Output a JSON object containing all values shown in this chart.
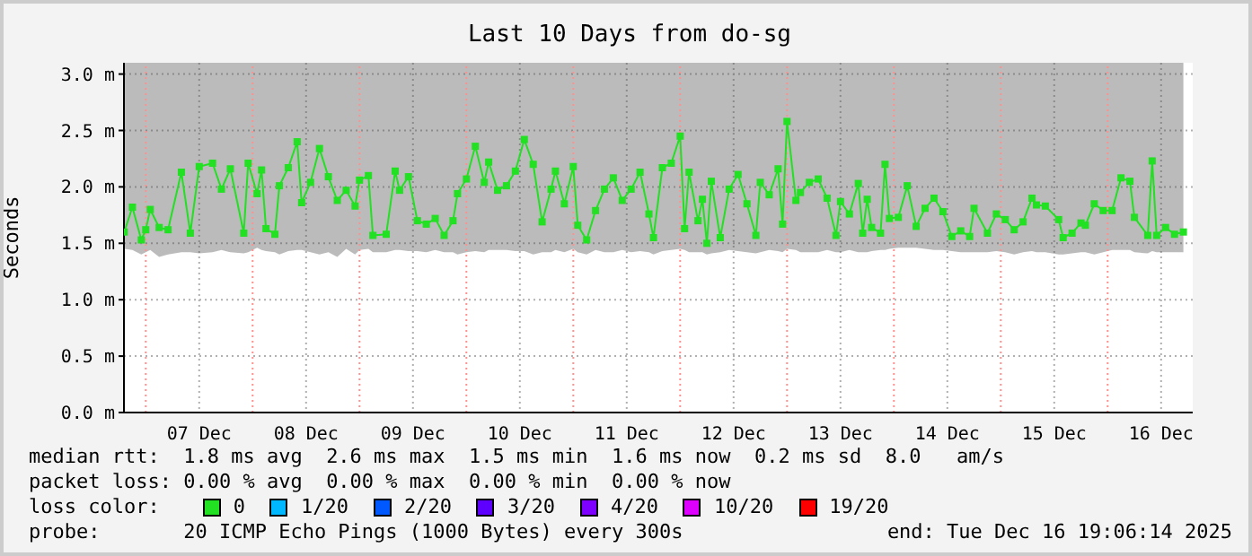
{
  "chart_data": {
    "type": "line",
    "title": "Last 10 Days from do-sg",
    "ylabel": "Seconds",
    "xlim": [
      "2025-12-06T19:06",
      "2025-12-16T19:06"
    ],
    "xticks": [
      {
        "value": "2025-12-07T12:00",
        "label": "07 Dec"
      },
      {
        "value": "2025-12-08T12:00",
        "label": "08 Dec"
      },
      {
        "value": "2025-12-09T12:00",
        "label": "09 Dec"
      },
      {
        "value": "2025-12-10T12:00",
        "label": "10 Dec"
      },
      {
        "value": "2025-12-11T12:00",
        "label": "11 Dec"
      },
      {
        "value": "2025-12-12T12:00",
        "label": "12 Dec"
      },
      {
        "value": "2025-12-13T12:00",
        "label": "13 Dec"
      },
      {
        "value": "2025-12-14T12:00",
        "label": "14 Dec"
      },
      {
        "value": "2025-12-15T12:00",
        "label": "15 Dec"
      },
      {
        "value": "2025-12-16T12:00",
        "label": "16 Dec"
      }
    ],
    "ylim": [
      0,
      3.1
    ],
    "yticks": [
      {
        "value": 0,
        "label": "0.0 m"
      },
      {
        "value": 0.5,
        "label": "0.5 m"
      },
      {
        "value": 1,
        "label": "1.0 m"
      },
      {
        "value": 1.5,
        "label": "1.5 m"
      },
      {
        "value": 2,
        "label": "2.0 m"
      },
      {
        "value": 2.5,
        "label": "2.5 m"
      },
      {
        "value": 3,
        "label": "3.0 m"
      }
    ],
    "grid": true,
    "legend": "bottom",
    "legend_title": "loss color:",
    "marker": "square",
    "ref_lines": [
      {
        "axis": "x",
        "value": "2025-12-07T00:00",
        "color": "#ff9090",
        "line_style": "dotted"
      },
      {
        "axis": "x",
        "value": "2025-12-08T00:00",
        "color": "#ff9090",
        "line_style": "dotted"
      },
      {
        "axis": "x",
        "value": "2025-12-09T00:00",
        "color": "#ff9090",
        "line_style": "dotted"
      },
      {
        "axis": "x",
        "value": "2025-12-10T00:00",
        "color": "#ff9090",
        "line_style": "dotted"
      },
      {
        "axis": "x",
        "value": "2025-12-11T00:00",
        "color": "#ff9090",
        "line_style": "dotted"
      },
      {
        "axis": "x",
        "value": "2025-12-12T00:00",
        "color": "#ff9090",
        "line_style": "dotted"
      },
      {
        "axis": "x",
        "value": "2025-12-13T00:00",
        "color": "#ff9090",
        "line_style": "dotted"
      },
      {
        "axis": "x",
        "value": "2025-12-14T00:00",
        "color": "#ff9090",
        "line_style": "dotted"
      },
      {
        "axis": "x",
        "value": "2025-12-15T00:00",
        "color": "#ff9090",
        "line_style": "dotted"
      },
      {
        "axis": "x",
        "value": "2025-12-16T00:00",
        "color": "#ff9090",
        "line_style": "dotted"
      }
    ],
    "annotations": [
      "median rtt:  1.8 ms avg  2.6 ms max  1.5 ms min  1.6 ms now  0.2 ms sd  8.0   am/s",
      "packet loss: 0.00 % avg  0.00 % max  0.00 % min  0.00 % now",
      "probe:       20 ICMP Echo Pings (1000 Bytes) every 300s",
      "end: Tue Dec 16 19:06:14 2025"
    ],
    "series": [
      {
        "name": "0",
        "color": "#22e022",
        "x": [
          "2025-12-06T19:10",
          "2025-12-06T21:00",
          "2025-12-06T23:00",
          "2025-12-07T00:00",
          "2025-12-07T01:00",
          "2025-12-07T03:00",
          "2025-12-07T05:00",
          "2025-12-07T08:00",
          "2025-12-07T10:00",
          "2025-12-07T12:00",
          "2025-12-07T15:00",
          "2025-12-07T17:00",
          "2025-12-07T19:00",
          "2025-12-07T22:00",
          "2025-12-07T23:00",
          "2025-12-08T01:00",
          "2025-12-08T02:00",
          "2025-12-08T03:00",
          "2025-12-08T05:00",
          "2025-12-08T06:00",
          "2025-12-08T08:00",
          "2025-12-08T10:00",
          "2025-12-08T11:00",
          "2025-12-08T13:00",
          "2025-12-08T15:00",
          "2025-12-08T17:00",
          "2025-12-08T19:00",
          "2025-12-08T21:00",
          "2025-12-08T23:00",
          "2025-12-09T00:00",
          "2025-12-09T02:00",
          "2025-12-09T03:00",
          "2025-12-09T06:00",
          "2025-12-09T08:00",
          "2025-12-09T09:00",
          "2025-12-09T11:00",
          "2025-12-09T13:00",
          "2025-12-09T15:00",
          "2025-12-09T17:00",
          "2025-12-09T19:00",
          "2025-12-09T21:00",
          "2025-12-09T22:00",
          "2025-12-10T00:00",
          "2025-12-10T02:00",
          "2025-12-10T04:00",
          "2025-12-10T05:00",
          "2025-12-10T07:00",
          "2025-12-10T09:00",
          "2025-12-10T11:00",
          "2025-12-10T13:00",
          "2025-12-10T15:00",
          "2025-12-10T17:00",
          "2025-12-10T19:00",
          "2025-12-10T20:00",
          "2025-12-10T22:00",
          "2025-12-11T00:00",
          "2025-12-11T01:00",
          "2025-12-11T03:00",
          "2025-12-11T05:00",
          "2025-12-11T07:00",
          "2025-12-11T09:00",
          "2025-12-11T11:00",
          "2025-12-11T13:00",
          "2025-12-11T15:00",
          "2025-12-11T17:00",
          "2025-12-11T18:00",
          "2025-12-11T20:00",
          "2025-12-11T22:00",
          "2025-12-12T00:00",
          "2025-12-12T01:00",
          "2025-12-12T02:00",
          "2025-12-12T04:00",
          "2025-12-12T05:00",
          "2025-12-12T06:00",
          "2025-12-12T07:00",
          "2025-12-12T09:00",
          "2025-12-12T11:00",
          "2025-12-12T13:00",
          "2025-12-12T15:00",
          "2025-12-12T17:00",
          "2025-12-12T18:00",
          "2025-12-12T20:00",
          "2025-12-12T22:00",
          "2025-12-12T23:00",
          "2025-12-13T00:00",
          "2025-12-13T02:00",
          "2025-12-13T03:00",
          "2025-12-13T05:00",
          "2025-12-13T07:00",
          "2025-12-13T09:00",
          "2025-12-13T11:00",
          "2025-12-13T12:00",
          "2025-12-13T14:00",
          "2025-12-13T16:00",
          "2025-12-13T17:00",
          "2025-12-13T18:00",
          "2025-12-13T19:00",
          "2025-12-13T21:00",
          "2025-12-13T22:00",
          "2025-12-13T23:00",
          "2025-12-14T01:00",
          "2025-12-14T03:00",
          "2025-12-14T05:00",
          "2025-12-14T07:00",
          "2025-12-14T09:00",
          "2025-12-14T11:00",
          "2025-12-14T13:00",
          "2025-12-14T15:00",
          "2025-12-14T17:00",
          "2025-12-14T18:00",
          "2025-12-14T21:00",
          "2025-12-14T23:00",
          "2025-12-15T01:00",
          "2025-12-15T03:00",
          "2025-12-15T05:00",
          "2025-12-15T07:00",
          "2025-12-15T08:00",
          "2025-12-15T10:00",
          "2025-12-15T13:00",
          "2025-12-15T14:00",
          "2025-12-15T16:00",
          "2025-12-15T18:00",
          "2025-12-15T19:00",
          "2025-12-15T21:00",
          "2025-12-15T23:00",
          "2025-12-16T01:00",
          "2025-12-16T03:00",
          "2025-12-16T05:00",
          "2025-12-16T06:00",
          "2025-12-16T09:00",
          "2025-12-16T10:00",
          "2025-12-16T11:00",
          "2025-12-16T13:00",
          "2025-12-16T15:00",
          "2025-12-16T17:00"
        ],
        "values": [
          1.6,
          1.82,
          1.53,
          1.62,
          1.8,
          1.64,
          1.62,
          2.13,
          1.59,
          2.18,
          2.21,
          1.98,
          2.16,
          1.59,
          2.21,
          1.94,
          2.15,
          1.63,
          1.58,
          2.01,
          2.17,
          2.4,
          1.86,
          2.04,
          2.34,
          2.09,
          1.88,
          1.97,
          1.83,
          2.06,
          2.1,
          1.57,
          1.58,
          2.14,
          1.97,
          2.09,
          1.7,
          1.67,
          1.72,
          1.57,
          1.7,
          1.94,
          2.07,
          2.36,
          2.04,
          2.22,
          1.97,
          2.01,
          2.14,
          2.42,
          2.2,
          1.69,
          1.98,
          2.14,
          1.85,
          2.18,
          1.66,
          1.53,
          1.79,
          1.98,
          2.08,
          1.88,
          1.98,
          2.13,
          1.76,
          1.55,
          2.17,
          2.21,
          2.45,
          1.63,
          2.13,
          1.7,
          1.89,
          1.5,
          2.05,
          1.55,
          1.98,
          2.11,
          1.85,
          1.57,
          2.04,
          1.93,
          2.16,
          1.67,
          2.58,
          1.88,
          1.95,
          2.04,
          2.07,
          1.9,
          1.57,
          1.87,
          1.76,
          2.03,
          1.59,
          1.89,
          1.64,
          1.59,
          2.2,
          1.72,
          1.73,
          2.01,
          1.65,
          1.81,
          1.9,
          1.78,
          1.56,
          1.61,
          1.56,
          1.81,
          1.59,
          1.76,
          1.71,
          1.62,
          1.69,
          1.9,
          1.84,
          1.83,
          1.71,
          1.55,
          1.59,
          1.68,
          1.66,
          1.85,
          1.79,
          1.79,
          2.08,
          2.05,
          1.73,
          1.57,
          2.23,
          1.57,
          1.64,
          1.58,
          1.6
        ],
        "lower": [
          1.45,
          1.44,
          1.4,
          1.42,
          1.44,
          1.38,
          1.4,
          1.42,
          1.42,
          1.41,
          1.42,
          1.44,
          1.42,
          1.41,
          1.42,
          1.46,
          1.44,
          1.43,
          1.42,
          1.4,
          1.43,
          1.44,
          1.44,
          1.42,
          1.4,
          1.42,
          1.38,
          1.45,
          1.4,
          1.44,
          1.45,
          1.42,
          1.42,
          1.44,
          1.44,
          1.43,
          1.43,
          1.42,
          1.44,
          1.42,
          1.42,
          1.4,
          1.42,
          1.43,
          1.42,
          1.44,
          1.44,
          1.44,
          1.43,
          1.43,
          1.4,
          1.42,
          1.42,
          1.44,
          1.42,
          1.45,
          1.42,
          1.4,
          1.44,
          1.42,
          1.42,
          1.44,
          1.42,
          1.43,
          1.42,
          1.4,
          1.43,
          1.44,
          1.45,
          1.44,
          1.42,
          1.42,
          1.42,
          1.4,
          1.41,
          1.42,
          1.44,
          1.43,
          1.42,
          1.41,
          1.42,
          1.44,
          1.43,
          1.42,
          1.45,
          1.44,
          1.42,
          1.42,
          1.42,
          1.44,
          1.42,
          1.42,
          1.44,
          1.42,
          1.42,
          1.42,
          1.43,
          1.44,
          1.44,
          1.45,
          1.46,
          1.46,
          1.46,
          1.45,
          1.44,
          1.44,
          1.43,
          1.42,
          1.42,
          1.42,
          1.42,
          1.43,
          1.42,
          1.4,
          1.42,
          1.43,
          1.42,
          1.42,
          1.4,
          1.4,
          1.41,
          1.42,
          1.42,
          1.4,
          1.42,
          1.44,
          1.44,
          1.44,
          1.42,
          1.41,
          1.43,
          1.42,
          1.42,
          1.42,
          1.42
        ],
        "upper": [
          3.1,
          3.1,
          3.1,
          3.1,
          3.1,
          3.1,
          3.1,
          3.1,
          3.1,
          3.1,
          3.1,
          3.1,
          3.1,
          3.1,
          3.1,
          3.1,
          3.1,
          3.1,
          3.1,
          3.1,
          3.1,
          3.1,
          3.1,
          3.1,
          3.1,
          3.1,
          3.1,
          3.1,
          3.1,
          3.1,
          3.1,
          3.1,
          3.1,
          3.1,
          3.1,
          3.1,
          3.1,
          3.1,
          3.1,
          3.1,
          3.1,
          3.1,
          3.1,
          3.1,
          3.1,
          3.1,
          3.1,
          3.1,
          3.1,
          3.1,
          3.1,
          3.1,
          3.1,
          3.1,
          3.1,
          3.1,
          3.1,
          3.1,
          3.1,
          3.1,
          3.1,
          3.1,
          3.1,
          3.1,
          3.1,
          3.1,
          3.1,
          3.1,
          3.1,
          3.1,
          3.1,
          3.1,
          3.1,
          3.1,
          3.1,
          3.1,
          3.1,
          3.1,
          3.1,
          3.1,
          3.1,
          3.1,
          3.1,
          3.1,
          3.1,
          3.1,
          3.1,
          3.1,
          3.1,
          3.1,
          3.1,
          3.1,
          3.1,
          3.1,
          3.1,
          3.1,
          3.1,
          3.1,
          3.1,
          3.1,
          3.1,
          3.1,
          3.1,
          3.1,
          3.1,
          3.1,
          3.1,
          3.1,
          3.1,
          3.1,
          3.1,
          3.1,
          3.1,
          3.1,
          3.1,
          3.1,
          3.1,
          3.1,
          3.1,
          3.1,
          3.1,
          3.1,
          3.1,
          3.1,
          3.1,
          3.1,
          3.1,
          3.1,
          3.1,
          3.1,
          3.1,
          3.1,
          3.1,
          3.1,
          3.1
        ]
      },
      {
        "name": "1/20",
        "color": "#00b8ff"
      },
      {
        "name": "2/20",
        "color": "#0059ff"
      },
      {
        "name": "3/20",
        "color": "#5e00ff"
      },
      {
        "name": "4/20",
        "color": "#7e00ff"
      },
      {
        "name": "10/20",
        "color": "#dd00ff"
      },
      {
        "name": "19/20",
        "color": "#ff0000"
      }
    ]
  }
}
